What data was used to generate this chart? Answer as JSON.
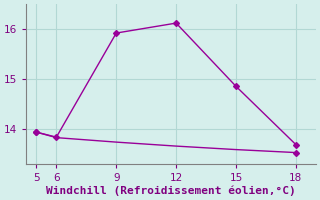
{
  "line1_x": [
    5,
    6,
    9,
    12,
    15,
    18
  ],
  "line1_y": [
    13.93,
    13.83,
    15.92,
    16.12,
    14.85,
    13.68
  ],
  "line2_x": [
    5,
    6,
    9,
    12,
    15,
    18
  ],
  "line2_y": [
    13.93,
    13.82,
    13.73,
    13.65,
    13.58,
    13.52
  ],
  "line_color": "#990099",
  "marker": "D",
  "marker_size": 3,
  "xlabel": "Windchill (Refroidissement éolien,°C)",
  "xlabel_color": "#800080",
  "xlim": [
    4.5,
    19.0
  ],
  "ylim": [
    13.3,
    16.5
  ],
  "yticks": [
    14,
    15,
    16
  ],
  "xticks": [
    5,
    6,
    9,
    12,
    15,
    18
  ],
  "bg_color": "#d6efec",
  "grid_color": "#b2d8d4",
  "tick_color": "#800080",
  "spine_color": "#808080",
  "tick_fontsize": 7.5,
  "xlabel_fontsize": 8
}
